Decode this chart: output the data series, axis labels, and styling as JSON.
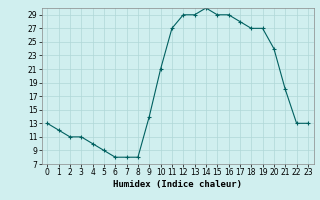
{
  "x": [
    0,
    1,
    2,
    3,
    4,
    5,
    6,
    7,
    8,
    9,
    10,
    11,
    12,
    13,
    14,
    15,
    16,
    17,
    18,
    19,
    20,
    21,
    22,
    23
  ],
  "y": [
    13,
    12,
    11,
    11,
    10,
    9,
    8,
    8,
    8,
    14,
    21,
    27,
    29,
    29,
    30,
    29,
    29,
    28,
    27,
    27,
    24,
    18,
    13,
    13
  ],
  "line_color": "#006060",
  "marker_color": "#006060",
  "bg_color": "#d0efef",
  "grid_color": "#b0d8d8",
  "xlabel": "Humidex (Indice chaleur)",
  "xlim": [
    -0.5,
    23.5
  ],
  "ylim": [
    7,
    30
  ],
  "yticks": [
    7,
    9,
    11,
    13,
    15,
    17,
    19,
    21,
    23,
    25,
    27,
    29
  ],
  "xticks": [
    0,
    1,
    2,
    3,
    4,
    5,
    6,
    7,
    8,
    9,
    10,
    11,
    12,
    13,
    14,
    15,
    16,
    17,
    18,
    19,
    20,
    21,
    22,
    23
  ],
  "xlabel_fontsize": 6.5,
  "tick_fontsize": 5.5
}
